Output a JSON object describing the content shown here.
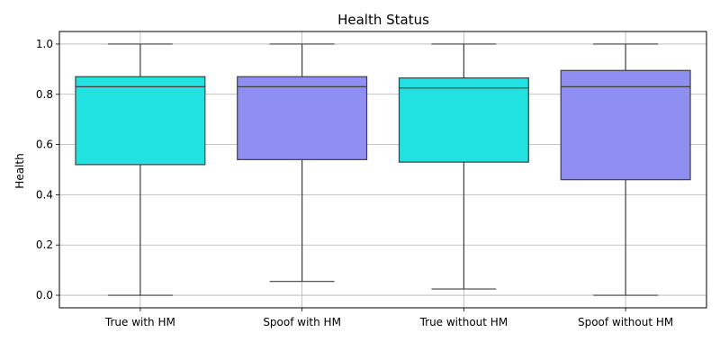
{
  "chart_data": {
    "type": "box",
    "title": "Health Status",
    "xlabel": "",
    "ylabel": "Health",
    "ylim": [
      -0.05,
      1.05
    ],
    "yticks": [
      0.0,
      0.2,
      0.4,
      0.6,
      0.8,
      1.0
    ],
    "ytick_labels": [
      "0.0",
      "0.2",
      "0.4",
      "0.6",
      "0.8",
      "1.0"
    ],
    "grid": true,
    "categories": [
      "True with HM",
      "Spoof with HM",
      "True without HM",
      "Spoof without HM"
    ],
    "boxes": [
      {
        "min": 0.0,
        "q1": 0.52,
        "median": 0.83,
        "q3": 0.87,
        "max": 1.0,
        "color": "#22e1e1"
      },
      {
        "min": 0.055,
        "q1": 0.54,
        "median": 0.83,
        "q3": 0.87,
        "max": 1.0,
        "color": "#8f8ff1"
      },
      {
        "min": 0.025,
        "q1": 0.53,
        "median": 0.825,
        "q3": 0.865,
        "max": 1.0,
        "color": "#22e1e1"
      },
      {
        "min": 0.0,
        "q1": 0.46,
        "median": 0.83,
        "q3": 0.895,
        "max": 1.0,
        "color": "#8f8ff1"
      }
    ]
  }
}
